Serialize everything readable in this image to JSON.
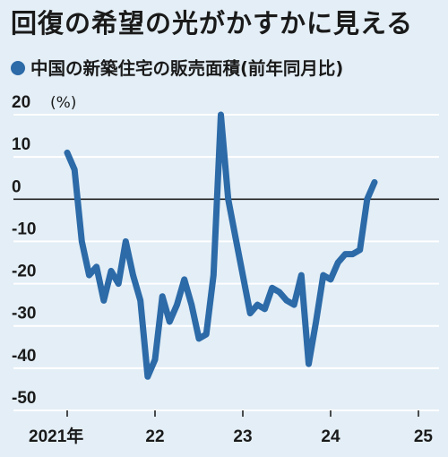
{
  "title": "回復の希望の光がかすかに見える",
  "subtitle": "中国の新築住宅の販売面積(前年同月比)",
  "colors": {
    "line": "#2c6aa8",
    "grid": "#ffffff",
    "zero": "#222222",
    "background": "#e3eef6"
  },
  "chart_data": {
    "type": "line",
    "title": "回復の希望の光がかすかに見える",
    "subtitle": "中国の新築住宅の販売面積(前年同月比)",
    "unit": "(%)",
    "ylim": [
      -50,
      20
    ],
    "yticks": [
      20,
      10,
      0,
      -10,
      -20,
      -30,
      -40,
      -50
    ],
    "xticks": [
      {
        "x": "2021-01",
        "label": "2021年"
      },
      {
        "x": "2022-01",
        "label": "22"
      },
      {
        "x": "2023-01",
        "label": "23"
      },
      {
        "x": "2024-01",
        "label": "24"
      },
      {
        "x": "2025-01",
        "label": "25"
      }
    ],
    "grid": true,
    "series": [
      {
        "values": [
          {
            "x": "2021-01",
            "y": 11
          },
          {
            "x": "2021-02",
            "y": 7
          },
          {
            "x": "2021-03",
            "y": -10
          },
          {
            "x": "2021-04",
            "y": -18
          },
          {
            "x": "2021-05",
            "y": -16
          },
          {
            "x": "2021-06",
            "y": -24
          },
          {
            "x": "2021-07",
            "y": -17
          },
          {
            "x": "2021-08",
            "y": -20
          },
          {
            "x": "2021-09",
            "y": -10
          },
          {
            "x": "2021-10",
            "y": -18
          },
          {
            "x": "2021-11",
            "y": -24
          },
          {
            "x": "2021-12",
            "y": -42
          },
          {
            "x": "2022-01",
            "y": -38
          },
          {
            "x": "2022-02",
            "y": -23
          },
          {
            "x": "2022-03",
            "y": -29
          },
          {
            "x": "2022-04",
            "y": -25
          },
          {
            "x": "2022-05",
            "y": -19
          },
          {
            "x": "2022-06",
            "y": -25
          },
          {
            "x": "2022-07",
            "y": -33
          },
          {
            "x": "2022-08",
            "y": -32
          },
          {
            "x": "2022-09",
            "y": -18
          },
          {
            "x": "2022-10",
            "y": 20
          },
          {
            "x": "2022-11",
            "y": 0
          },
          {
            "x": "2022-12",
            "y": -9
          },
          {
            "x": "2023-01",
            "y": -18
          },
          {
            "x": "2023-02",
            "y": -27
          },
          {
            "x": "2023-03",
            "y": -25
          },
          {
            "x": "2023-04",
            "y": -26
          },
          {
            "x": "2023-05",
            "y": -21
          },
          {
            "x": "2023-06",
            "y": -22
          },
          {
            "x": "2023-07",
            "y": -24
          },
          {
            "x": "2023-08",
            "y": -25
          },
          {
            "x": "2023-09",
            "y": -18
          },
          {
            "x": "2023-10",
            "y": -39
          },
          {
            "x": "2023-11",
            "y": -29
          },
          {
            "x": "2023-12",
            "y": -18
          },
          {
            "x": "2024-01",
            "y": -19
          },
          {
            "x": "2024-02",
            "y": -15
          },
          {
            "x": "2024-03",
            "y": -13
          },
          {
            "x": "2024-04",
            "y": -13
          },
          {
            "x": "2024-05",
            "y": -12
          },
          {
            "x": "2024-06",
            "y": 0
          },
          {
            "x": "2024-07",
            "y": 4
          }
        ]
      }
    ]
  }
}
